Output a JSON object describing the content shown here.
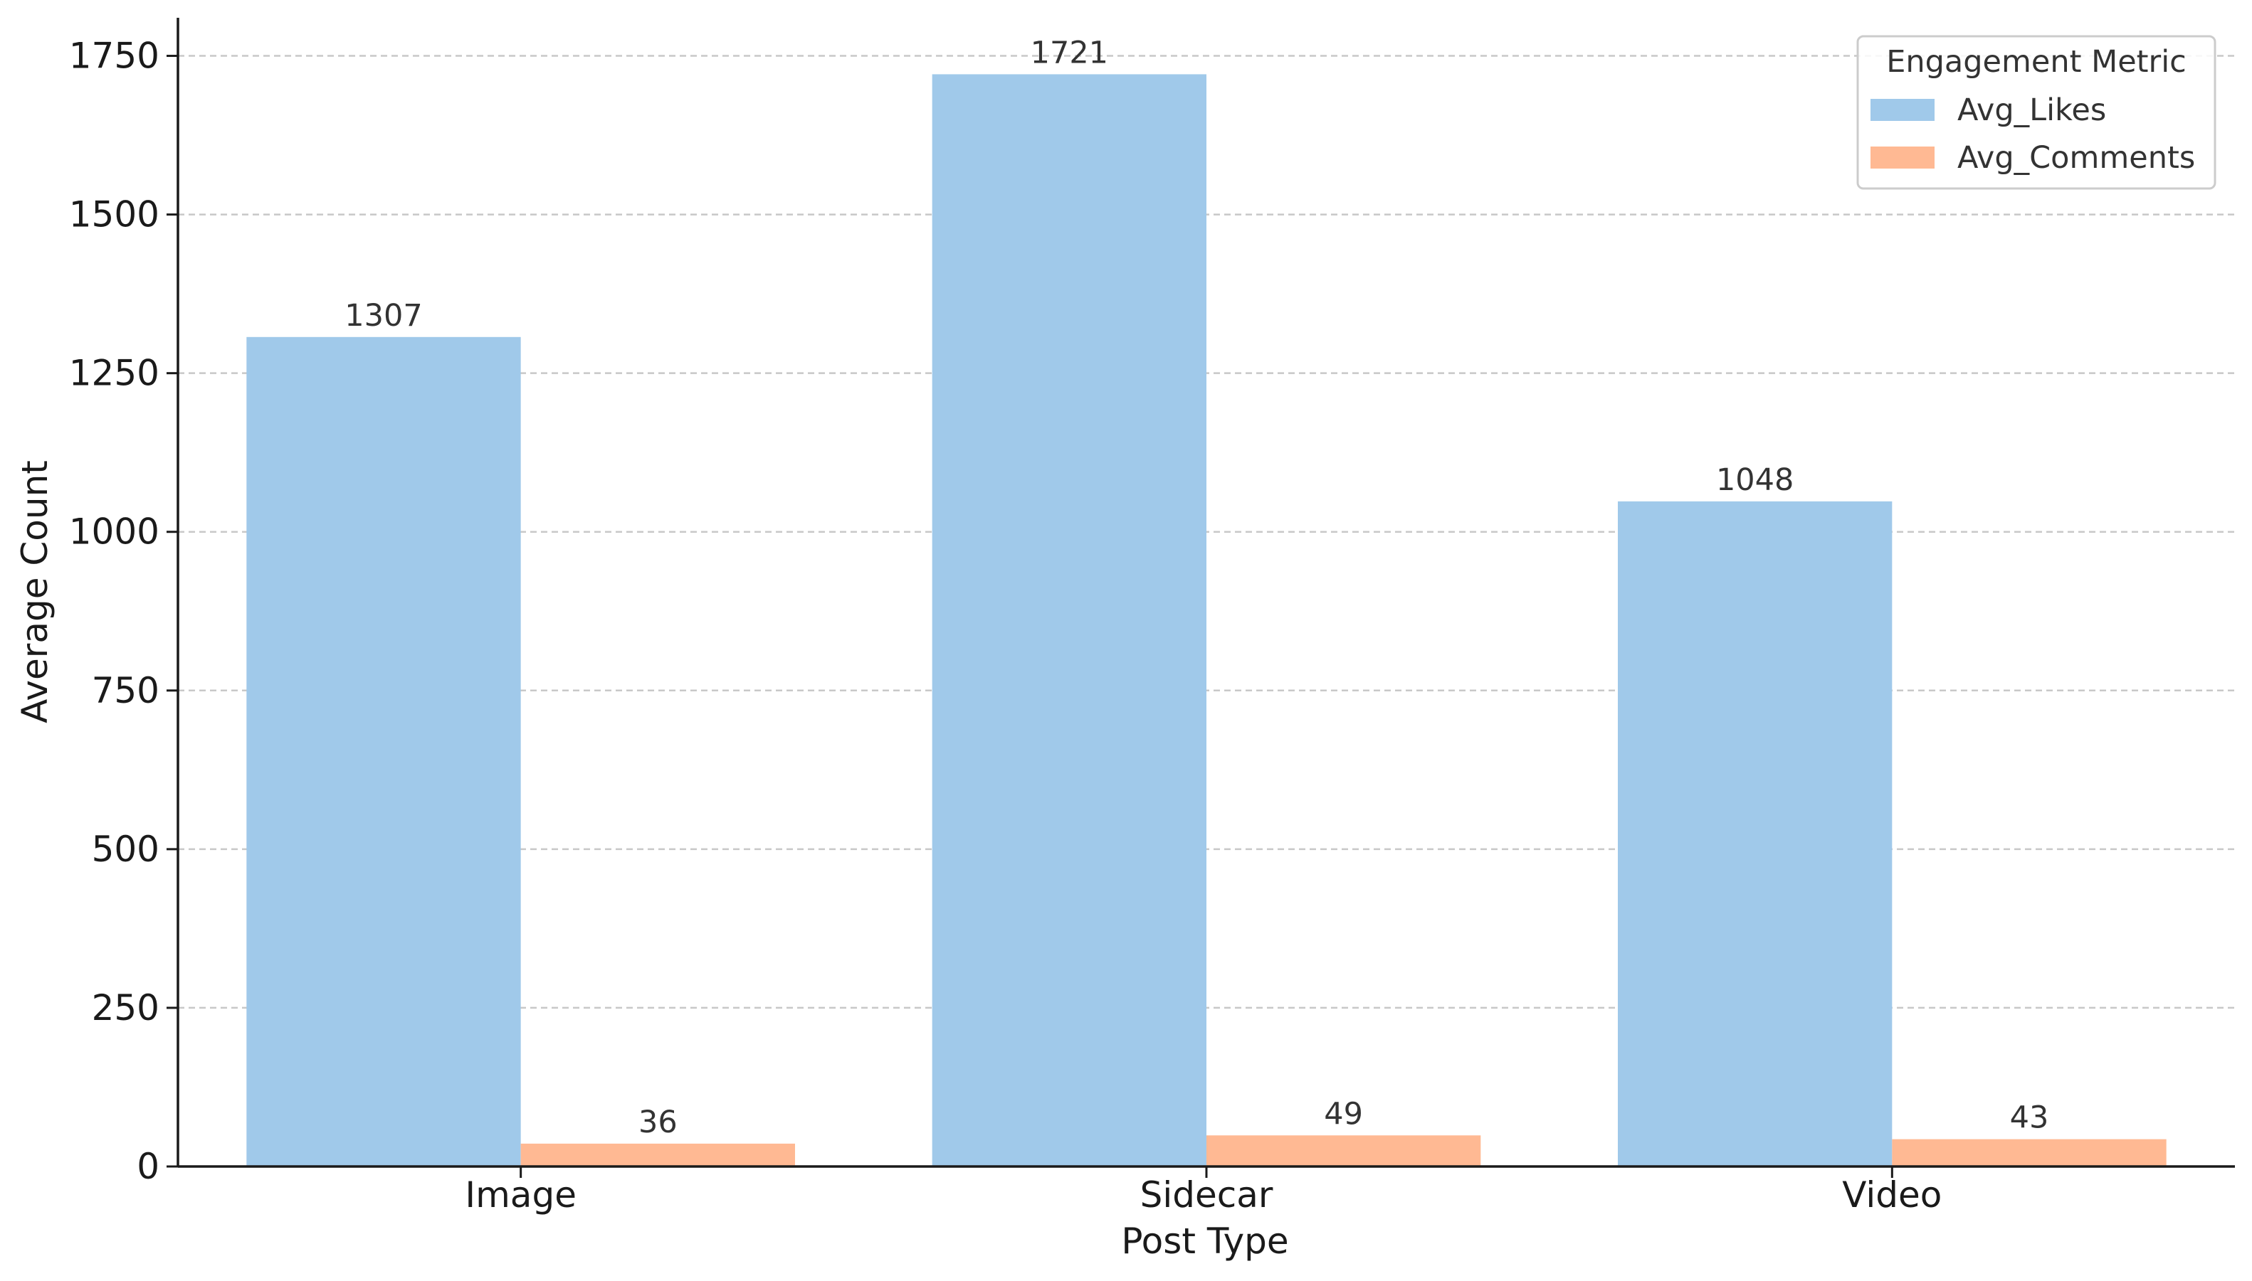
{
  "chart_data": {
    "type": "bar",
    "title": "",
    "xlabel": "Post Type",
    "ylabel": "Average Count",
    "categories": [
      "Image",
      "Sidecar",
      "Video"
    ],
    "series": [
      {
        "name": "Avg_Likes",
        "values": [
          1307,
          1721,
          1048
        ],
        "color": "#a0c9ea"
      },
      {
        "name": "Avg_Comments",
        "values": [
          36,
          49,
          43
        ],
        "color": "#ffb993"
      }
    ],
    "data_labels": [
      [
        "1307",
        "1721",
        "1048"
      ],
      [
        "36",
        "49",
        "43"
      ]
    ],
    "ylim": [
      0,
      1810
    ],
    "yticks": [
      0,
      250,
      500,
      750,
      1000,
      1250,
      1500,
      1750
    ],
    "grid": "y-dashed",
    "legend": {
      "title": "Engagement Metric",
      "position": "top-right"
    }
  }
}
